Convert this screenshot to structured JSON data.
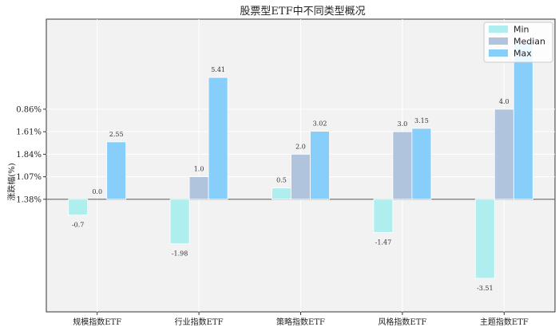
{
  "chart_data": {
    "type": "bar",
    "title": "股票型ETF中不同类型概况",
    "ylabel": "涨跌幅(%)",
    "categories": [
      "规模指数ETF",
      "行业指数ETF",
      "策略指数ETF",
      "风格指数ETF",
      "主题指数ETF"
    ],
    "series": [
      {
        "name": "Min",
        "color": "#afeeee",
        "values": [
          -0.7,
          -1.98,
          0.5,
          -1.47,
          -3.51
        ],
        "labels": [
          "-0.7",
          "-1.98",
          "0.5",
          "-1.47",
          "-3.51"
        ]
      },
      {
        "name": "Median",
        "color": "#b0c4de",
        "values": [
          0.0,
          1.0,
          2.0,
          3.0,
          4.0
        ],
        "labels": [
          "0.0",
          "1.0",
          "2.0",
          "3.0",
          "4.0"
        ]
      },
      {
        "name": "Max",
        "color": "#87cefa",
        "values": [
          2.55,
          5.41,
          3.02,
          3.15,
          7.0
        ],
        "labels": [
          "2.55",
          "5.41",
          "3.02",
          "3.15",
          ""
        ]
      }
    ],
    "yticks": [
      {
        "value": 0,
        "label": "1.38%"
      },
      {
        "value": 1,
        "label": "1.07%"
      },
      {
        "value": 2,
        "label": "1.84%"
      },
      {
        "value": 3,
        "label": "1.61%"
      },
      {
        "value": 4,
        "label": "0.86%"
      }
    ],
    "ylim": [
      -5,
      8
    ],
    "grid": true,
    "legend_position": "top-right"
  }
}
